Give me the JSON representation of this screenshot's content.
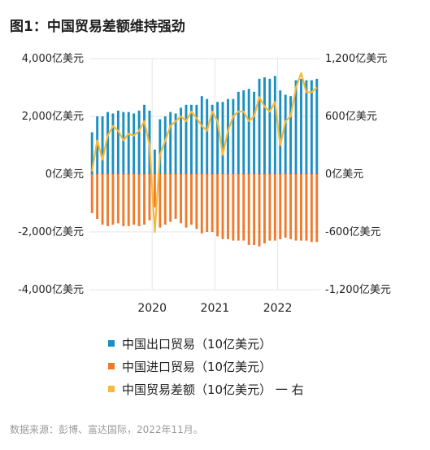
{
  "title": "图1：中国贸易差额维持强劲",
  "source": "数据来源：彭博、富达国际，2022年11月。",
  "colors": {
    "exports": "#1a8fc1",
    "imports": "#f07a2c",
    "balance": "#f8b938"
  },
  "legend": [
    {
      "label": "中国出口贸易（10亿美元）",
      "color": "#1a8fc1"
    },
    {
      "label": "中国进口贸易（10亿美元）",
      "color": "#f07a2c"
    },
    {
      "label": "中国贸易差额（10亿美元） 一 右",
      "color": "#f8b938"
    }
  ],
  "chart_data": {
    "type": "bar",
    "title": "图1：中国贸易差额维持强劲",
    "left_axis": {
      "ylim": [
        -4000,
        4000
      ],
      "ticks": [
        4000,
        2000,
        0,
        -2000,
        -4000
      ],
      "tick_labels": [
        "4,000亿美元",
        "2,000亿美元",
        "0亿美元",
        "-2,000亿美元",
        "-4,000亿美元"
      ]
    },
    "right_axis": {
      "ylim": [
        -1200,
        1200
      ],
      "ticks": [
        1200,
        600,
        0,
        -600,
        -1200
      ],
      "tick_labels": [
        "1,200亿美元",
        "600亿美元",
        "0亿美元",
        "-600亿美元",
        "-1,200亿美元"
      ]
    },
    "x_ticks": [
      {
        "label": "2020",
        "month_index": 12
      },
      {
        "label": "2021",
        "month_index": 24
      },
      {
        "label": "2022",
        "month_index": 36
      }
    ],
    "x_start": "2019-01",
    "series": [
      {
        "name": "中国出口贸易（10亿美元）",
        "type": "bar",
        "axis": "left",
        "values": [
          1450,
          2000,
          2000,
          2150,
          2100,
          2200,
          2150,
          2150,
          2100,
          2200,
          2400,
          2200,
          850,
          1900,
          2000,
          2150,
          2100,
          2300,
          2400,
          2400,
          2400,
          2700,
          2600,
          2400,
          2500,
          2500,
          2600,
          2600,
          2850,
          2900,
          2950,
          2850,
          3300,
          3350,
          3300,
          3400,
          2900,
          2750,
          2700,
          3250,
          3300,
          3250,
          3250,
          3300
        ]
      },
      {
        "name": "中国进口贸易（10亿美元）",
        "type": "bar",
        "axis": "left",
        "values": [
          -1350,
          -1550,
          -1750,
          -1800,
          -1750,
          -1700,
          -1800,
          -1800,
          -1750,
          -1800,
          -1750,
          -1600,
          -1150,
          -1850,
          -1750,
          -1650,
          -1550,
          -1700,
          -1850,
          -1750,
          -1900,
          -2050,
          -2000,
          -2000,
          -2150,
          -2250,
          -2250,
          -2300,
          -2300,
          -2300,
          -2450,
          -2450,
          -2500,
          -2400,
          -2300,
          -2300,
          -2250,
          -2200,
          -2250,
          -2300,
          -2300,
          -2300,
          -2350,
          -2350
        ]
      },
      {
        "name": "中国贸易差额（10亿美元） 一 右",
        "type": "line",
        "axis": "right",
        "values": [
          30,
          350,
          150,
          400,
          500,
          450,
          350,
          420,
          400,
          450,
          550,
          300,
          -600,
          200,
          350,
          500,
          550,
          600,
          550,
          650,
          580,
          500,
          450,
          650,
          550,
          200,
          450,
          600,
          650,
          650,
          550,
          600,
          800,
          700,
          650,
          750,
          300,
          550,
          600,
          900,
          1050,
          850,
          850,
          900
        ]
      }
    ]
  }
}
